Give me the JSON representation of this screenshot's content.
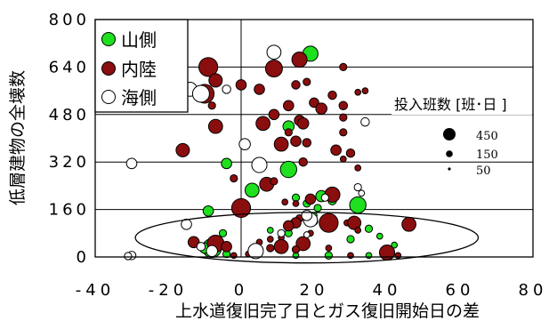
{
  "chart_data": {
    "type": "scatter",
    "xlabel": "上水道復旧完了日とガス復旧開始日の差",
    "ylabel": "低層建物の全壊数",
    "xlim": [
      -40,
      80
    ],
    "ylim": [
      0,
      800
    ],
    "x_ticks": [
      "-40",
      "-20",
      "0",
      "20",
      "40",
      "60",
      "80"
    ],
    "y_ticks": [
      "0",
      "160",
      "320",
      "480",
      "640",
      "800"
    ],
    "grid": "horizontal",
    "legend": {
      "placement": "top-left",
      "entries": [
        {
          "label": "山側",
          "color": "#1ee01e"
        },
        {
          "label": "内陸",
          "color": "#8b0e0e"
        },
        {
          "label": "海側",
          "color": "#ffffff"
        }
      ]
    },
    "size_legend": {
      "title": "投入班数 [班･日 ]",
      "entries": [
        {
          "label": "450",
          "value": 450
        },
        {
          "label": "150",
          "value": 150
        },
        {
          "label": "50",
          "value": 50
        }
      ]
    },
    "annotation": {
      "shape": "ellipse",
      "center": [
        18,
        65
      ],
      "rx": 47,
      "ry": 85
    },
    "series": [
      {
        "name": "山側",
        "color": "#1ee01e",
        "points": [
          {
            "x": 19,
            "y": 685,
            "s": 130
          },
          {
            "x": -25,
            "y": 575,
            "s": 160
          },
          {
            "x": 13,
            "y": 440,
            "s": 70
          },
          {
            "x": -4,
            "y": 315,
            "s": 60
          },
          {
            "x": 13,
            "y": 295,
            "s": 150
          },
          {
            "x": 3,
            "y": 225,
            "s": 110
          },
          {
            "x": 22,
            "y": 205,
            "s": 70
          },
          {
            "x": 25,
            "y": 190,
            "s": 40
          },
          {
            "x": 32,
            "y": 175,
            "s": 150
          },
          {
            "x": 15,
            "y": 200,
            "s": 30
          },
          {
            "x": 18,
            "y": 180,
            "s": 30
          },
          {
            "x": 21,
            "y": 165,
            "s": 30
          },
          {
            "x": -9,
            "y": 155,
            "s": 60
          },
          {
            "x": 20,
            "y": 140,
            "s": 20
          },
          {
            "x": 25,
            "y": 120,
            "s": 30
          },
          {
            "x": 35,
            "y": 95,
            "s": 30
          },
          {
            "x": 38,
            "y": 70,
            "s": 20
          },
          {
            "x": 30,
            "y": 60,
            "s": 30
          },
          {
            "x": 13,
            "y": 80,
            "s": 30
          },
          {
            "x": -5,
            "y": 80,
            "s": 30
          },
          {
            "x": 8,
            "y": 90,
            "s": 20
          },
          {
            "x": -8,
            "y": 30,
            "s": 200
          },
          {
            "x": -10,
            "y": 30,
            "s": 60
          },
          {
            "x": -4,
            "y": 10,
            "s": 30
          },
          {
            "x": 24,
            "y": 5,
            "s": 30
          },
          {
            "x": 42,
            "y": 40,
            "s": 20
          },
          {
            "x": 35,
            "y": 5,
            "s": 20
          },
          {
            "x": 15,
            "y": 5,
            "s": 20
          }
        ]
      },
      {
        "name": "内陸",
        "color": "#8b0e0e",
        "points": [
          {
            "x": -9,
            "y": 640,
            "s": 200
          },
          {
            "x": 9,
            "y": 635,
            "s": 160
          },
          {
            "x": 16,
            "y": 665,
            "s": 130
          },
          {
            "x": 28,
            "y": 640,
            "s": 30
          },
          {
            "x": -7,
            "y": 595,
            "s": 100
          },
          {
            "x": 0,
            "y": 580,
            "s": 60
          },
          {
            "x": 18,
            "y": 590,
            "s": 30
          },
          {
            "x": -10,
            "y": 550,
            "s": 200
          },
          {
            "x": -8,
            "y": 510,
            "s": 30
          },
          {
            "x": 5,
            "y": 565,
            "s": 60
          },
          {
            "x": 15,
            "y": 580,
            "s": 40
          },
          {
            "x": 25,
            "y": 545,
            "s": 40
          },
          {
            "x": 32,
            "y": 555,
            "s": 20
          },
          {
            "x": 34,
            "y": 560,
            "s": 20
          },
          {
            "x": 20,
            "y": 520,
            "s": 50
          },
          {
            "x": 13,
            "y": 510,
            "s": 60
          },
          {
            "x": 22,
            "y": 500,
            "s": 70
          },
          {
            "x": 28,
            "y": 510,
            "s": 40
          },
          {
            "x": 9,
            "y": 480,
            "s": 60
          },
          {
            "x": 16,
            "y": 460,
            "s": 60
          },
          {
            "x": 28,
            "y": 470,
            "s": 30
          },
          {
            "x": 6,
            "y": 450,
            "s": 110
          },
          {
            "x": 17,
            "y": 450,
            "s": 70
          },
          {
            "x": -7,
            "y": 440,
            "s": 110
          },
          {
            "x": 13,
            "y": 420,
            "s": 30
          },
          {
            "x": 28,
            "y": 420,
            "s": 30
          },
          {
            "x": 15,
            "y": 390,
            "s": 60
          },
          {
            "x": 18,
            "y": 385,
            "s": 40
          },
          {
            "x": 11,
            "y": 380,
            "s": 110
          },
          {
            "x": 26,
            "y": 360,
            "s": 60
          },
          {
            "x": -16,
            "y": 360,
            "s": 100
          },
          {
            "x": 30,
            "y": 350,
            "s": 40
          },
          {
            "x": 28,
            "y": 330,
            "s": 20
          },
          {
            "x": 17,
            "y": 320,
            "s": 40
          },
          {
            "x": 32,
            "y": 300,
            "s": 20
          },
          {
            "x": -2,
            "y": 265,
            "s": 30
          },
          {
            "x": 7,
            "y": 245,
            "s": 110
          },
          {
            "x": 9,
            "y": 255,
            "s": 30
          },
          {
            "x": 25,
            "y": 210,
            "s": 130
          },
          {
            "x": 0,
            "y": 165,
            "s": 200
          },
          {
            "x": 19,
            "y": 195,
            "s": 60
          },
          {
            "x": 12,
            "y": 185,
            "s": 20
          },
          {
            "x": 15,
            "y": 180,
            "s": 20
          },
          {
            "x": 29,
            "y": 115,
            "s": 20
          },
          {
            "x": 20,
            "y": 120,
            "s": 30
          },
          {
            "x": 16,
            "y": 130,
            "s": 30
          },
          {
            "x": 31,
            "y": 115,
            "s": 100
          },
          {
            "x": 24,
            "y": 115,
            "s": 200
          },
          {
            "x": 15,
            "y": 115,
            "s": 60
          },
          {
            "x": 13,
            "y": 105,
            "s": 60
          },
          {
            "x": 46,
            "y": 110,
            "s": 110
          },
          {
            "x": 32,
            "y": 90,
            "s": 20
          },
          {
            "x": 19,
            "y": 80,
            "s": 20
          },
          {
            "x": 8,
            "y": 60,
            "s": 20
          },
          {
            "x": 11,
            "y": 65,
            "s": 20
          },
          {
            "x": 5,
            "y": 50,
            "s": 20
          },
          {
            "x": 17,
            "y": 45,
            "s": 110
          },
          {
            "x": 11,
            "y": 35,
            "s": 110
          },
          {
            "x": -13,
            "y": 50,
            "s": 70
          },
          {
            "x": -7,
            "y": 45,
            "s": 160
          },
          {
            "x": -4,
            "y": 35,
            "s": 60
          },
          {
            "x": 8,
            "y": 30,
            "s": 30
          },
          {
            "x": 15,
            "y": 25,
            "s": 30
          },
          {
            "x": 24,
            "y": 30,
            "s": 20
          },
          {
            "x": 40,
            "y": 15,
            "s": 130
          },
          {
            "x": 30,
            "y": 5,
            "s": 20
          },
          {
            "x": -2,
            "y": 5,
            "s": 20
          },
          {
            "x": 2,
            "y": 10,
            "s": 20
          },
          {
            "x": 43,
            "y": 5,
            "s": 20
          }
        ]
      },
      {
        "name": "海側",
        "color": "#ffffff",
        "points": [
          {
            "x": 9,
            "y": 690,
            "s": 110
          },
          {
            "x": -14,
            "y": 565,
            "s": 110
          },
          {
            "x": -11,
            "y": 550,
            "s": 160
          },
          {
            "x": -4,
            "y": 565,
            "s": 40
          },
          {
            "x": 34,
            "y": 455,
            "s": 40
          },
          {
            "x": 1,
            "y": 380,
            "s": 70
          },
          {
            "x": 5,
            "y": 310,
            "s": 130
          },
          {
            "x": -30,
            "y": 315,
            "s": 60
          },
          {
            "x": 23,
            "y": 200,
            "s": 30
          },
          {
            "x": 32,
            "y": 235,
            "s": 30
          },
          {
            "x": 33,
            "y": 215,
            "s": 20
          },
          {
            "x": 19,
            "y": 125,
            "s": 110
          },
          {
            "x": 18,
            "y": 140,
            "s": 60
          },
          {
            "x": -15,
            "y": 110,
            "s": 60
          },
          {
            "x": 11,
            "y": 80,
            "s": 30
          },
          {
            "x": 4,
            "y": 20,
            "s": 130
          },
          {
            "x": -11,
            "y": 35,
            "s": 40
          },
          {
            "x": -8,
            "y": 20,
            "s": 70
          },
          {
            "x": -30,
            "y": 5,
            "s": 40
          },
          {
            "x": -31,
            "y": 3,
            "s": 30
          },
          {
            "x": 18,
            "y": 75,
            "s": 20
          }
        ]
      }
    ]
  }
}
